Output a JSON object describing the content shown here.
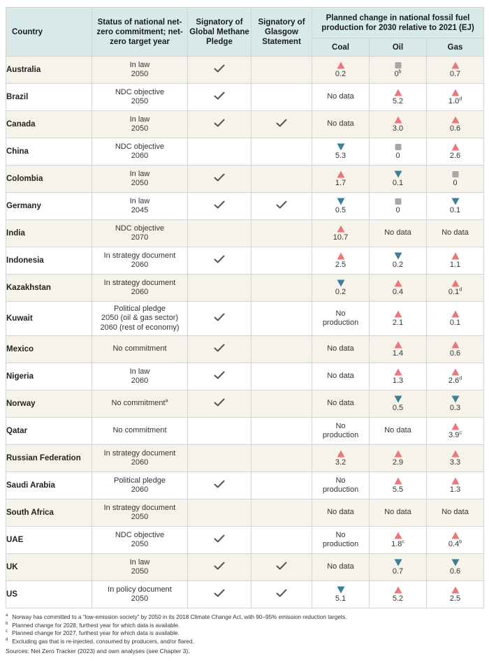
{
  "header": {
    "country": "Country",
    "status": "Status of national net-zero commitment; net-zero target year",
    "methane": "Signatory of Global Methane Pledge",
    "glasgow": "Signatory of Glasgow Statement",
    "planned": "Planned change in national fossil fuel production for 2030 relative to 2021 (EJ)",
    "coal": "Coal",
    "oil": "Oil",
    "gas": "Gas"
  },
  "colors": {
    "up": "#e8787c",
    "down": "#3c7f98",
    "flat": "#a7a7a7",
    "header_bg": "#d8e9ea",
    "row_alt": "#f8f3ea"
  },
  "rows": [
    {
      "country": "Australia",
      "status": [
        "In law",
        "2050"
      ],
      "methane": true,
      "glasgow": false,
      "coal": {
        "dir": "up",
        "text": "0.2"
      },
      "oil": {
        "dir": "flat",
        "text": "0",
        "sup": "b"
      },
      "gas": {
        "dir": "up",
        "text": "0.7"
      }
    },
    {
      "country": "Brazil",
      "status": [
        "NDC objective",
        "2050"
      ],
      "methane": true,
      "glasgow": false,
      "coal": {
        "text": "No data"
      },
      "oil": {
        "dir": "up",
        "text": "5.2"
      },
      "gas": {
        "dir": "up",
        "text": "1.0",
        "sup": "d"
      }
    },
    {
      "country": "Canada",
      "status": [
        "In law",
        "2050"
      ],
      "methane": true,
      "glasgow": true,
      "coal": {
        "text": "No data"
      },
      "oil": {
        "dir": "up",
        "text": "3.0"
      },
      "gas": {
        "dir": "up",
        "text": "0.6"
      }
    },
    {
      "country": "China",
      "status": [
        "NDC objective",
        "2060"
      ],
      "methane": false,
      "glasgow": false,
      "coal": {
        "dir": "down",
        "text": "5.3"
      },
      "oil": {
        "dir": "flat",
        "text": "0"
      },
      "gas": {
        "dir": "up",
        "text": "2.6"
      }
    },
    {
      "country": "Colombia",
      "status": [
        "In law",
        "2050"
      ],
      "methane": true,
      "glasgow": false,
      "coal": {
        "dir": "up",
        "text": "1.7"
      },
      "oil": {
        "dir": "down",
        "text": "0.1"
      },
      "gas": {
        "dir": "flat",
        "text": "0"
      }
    },
    {
      "country": "Germany",
      "status": [
        "In law",
        "2045"
      ],
      "methane": true,
      "glasgow": true,
      "coal": {
        "dir": "down",
        "text": "0.5"
      },
      "oil": {
        "dir": "flat",
        "text": "0"
      },
      "gas": {
        "dir": "down",
        "text": "0.1"
      }
    },
    {
      "country": "India",
      "status": [
        "NDC objective",
        "2070"
      ],
      "methane": false,
      "glasgow": false,
      "coal": {
        "dir": "up",
        "text": "10.7"
      },
      "oil": {
        "text": "No data"
      },
      "gas": {
        "text": "No data"
      }
    },
    {
      "country": "Indonesia",
      "status": [
        "In strategy document",
        "2060"
      ],
      "methane": true,
      "glasgow": false,
      "coal": {
        "dir": "up",
        "text": "2.5"
      },
      "oil": {
        "dir": "down",
        "text": "0.2"
      },
      "gas": {
        "dir": "up",
        "text": "1.1"
      }
    },
    {
      "country": "Kazakhstan",
      "status": [
        "In strategy document",
        "2060"
      ],
      "methane": false,
      "glasgow": false,
      "coal": {
        "dir": "down",
        "text": "0.2"
      },
      "oil": {
        "dir": "up",
        "text": "0.4"
      },
      "gas": {
        "dir": "up",
        "text": "0.1",
        "sup": "d"
      }
    },
    {
      "country": "Kuwait",
      "status": [
        "Political pledge",
        "2050 (oil & gas sector)",
        "2060 (rest of economy)"
      ],
      "methane": true,
      "glasgow": false,
      "tall": true,
      "coal": {
        "text": "No production",
        "lines": [
          "No",
          "production"
        ]
      },
      "oil": {
        "dir": "up",
        "text": "2.1"
      },
      "gas": {
        "dir": "up",
        "text": "0.1"
      }
    },
    {
      "country": "Mexico",
      "status": [
        "No commitment"
      ],
      "methane": true,
      "glasgow": false,
      "coal": {
        "text": "No data"
      },
      "oil": {
        "dir": "up",
        "text": "1.4"
      },
      "gas": {
        "dir": "up",
        "text": "0.6"
      }
    },
    {
      "country": "Nigeria",
      "status": [
        "In law",
        "2060"
      ],
      "methane": true,
      "glasgow": false,
      "coal": {
        "text": "No data"
      },
      "oil": {
        "dir": "up",
        "text": "1.3"
      },
      "gas": {
        "dir": "up",
        "text": "2.6",
        "sup": "d"
      }
    },
    {
      "country": "Norway",
      "status": [
        "No commitment"
      ],
      "status_sup": "a",
      "methane": true,
      "glasgow": false,
      "coal": {
        "text": "No data"
      },
      "oil": {
        "dir": "down",
        "text": "0.5"
      },
      "gas": {
        "dir": "down",
        "text": "0.3"
      }
    },
    {
      "country": "Qatar",
      "status": [
        "No commitment"
      ],
      "methane": false,
      "glasgow": false,
      "coal": {
        "text": "No production",
        "lines": [
          "No",
          "production"
        ]
      },
      "oil": {
        "text": "No data"
      },
      "gas": {
        "dir": "up",
        "text": "3.9",
        "sup": "c"
      }
    },
    {
      "country": "Russian Federation",
      "status": [
        "In strategy document",
        "2060"
      ],
      "methane": false,
      "glasgow": false,
      "coal": {
        "dir": "up",
        "text": "3.2"
      },
      "oil": {
        "dir": "up",
        "text": "2.9"
      },
      "gas": {
        "dir": "up",
        "text": "3.3"
      }
    },
    {
      "country": "Saudi Arabia",
      "status": [
        "Political pledge",
        "2060"
      ],
      "methane": true,
      "glasgow": false,
      "coal": {
        "text": "No production",
        "lines": [
          "No",
          "production"
        ]
      },
      "oil": {
        "dir": "up",
        "text": "5.5"
      },
      "gas": {
        "dir": "up",
        "text": "1.3"
      }
    },
    {
      "country": "South Africa",
      "status": [
        "In strategy document",
        "2050"
      ],
      "methane": false,
      "glasgow": false,
      "coal": {
        "text": "No data"
      },
      "oil": {
        "text": "No data"
      },
      "gas": {
        "text": "No data"
      }
    },
    {
      "country": "UAE",
      "status": [
        "NDC objective",
        "2050"
      ],
      "methane": true,
      "glasgow": false,
      "coal": {
        "text": "No production",
        "lines": [
          "No",
          "production"
        ]
      },
      "oil": {
        "dir": "up",
        "text": "1.8",
        "sup": "c"
      },
      "gas": {
        "dir": "up",
        "text": "0.4",
        "sup": "b"
      }
    },
    {
      "country": "UK",
      "status": [
        "In law",
        "2050"
      ],
      "methane": true,
      "glasgow": true,
      "coal": {
        "text": "No data"
      },
      "oil": {
        "dir": "down",
        "text": "0.7"
      },
      "gas": {
        "dir": "down",
        "text": "0.6"
      }
    },
    {
      "country": "US",
      "status": [
        "In policy document",
        "2050"
      ],
      "methane": true,
      "glasgow": true,
      "coal": {
        "dir": "down",
        "text": "5.1"
      },
      "oil": {
        "dir": "up",
        "text": "5.2"
      },
      "gas": {
        "dir": "up",
        "text": "2.5"
      }
    }
  ],
  "footnotes": [
    {
      "mark": "a",
      "text": "Norway has committed to a “low-emission society” by 2050 in its 2018 Climate Change Act, with 90–95% emission reduction targets."
    },
    {
      "mark": "b",
      "text": "Planned change for 2028, furthest year for which data is available."
    },
    {
      "mark": "c",
      "text": "Planned change for 2027, furthest year for which data is available."
    },
    {
      "mark": "d",
      "text": "Excluding gas that is re-injected, consumed by producers, and/or flared."
    }
  ],
  "sources": "Sources: Net Zero Tracker (2023) and own analyses (see Chapter 3)."
}
